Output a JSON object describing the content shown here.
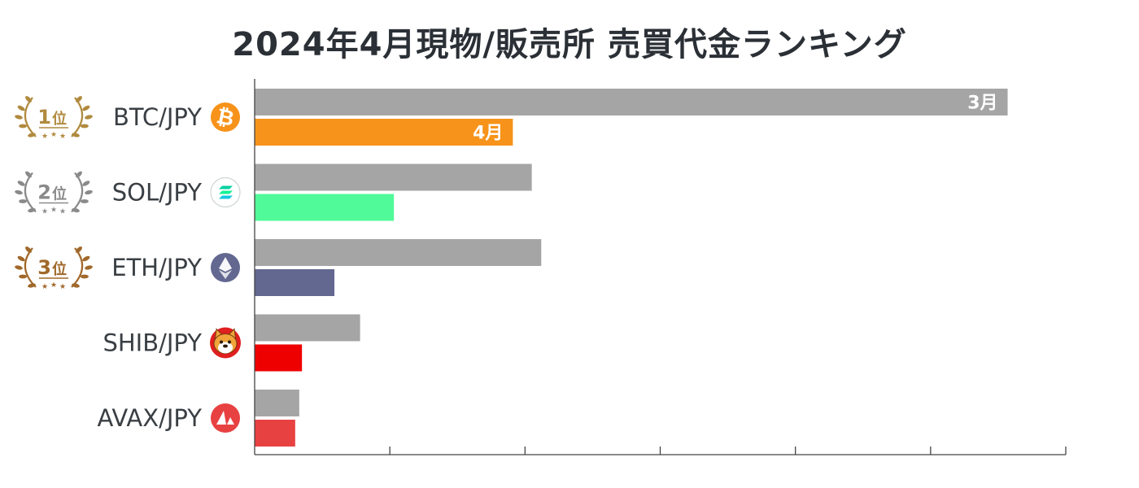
{
  "title": "2024年4月現物/販売所 売買代金ランキング",
  "chart_data": {
    "type": "bar",
    "orientation": "horizontal",
    "title": "2024年4月現物/販売所 売買代金ランキング",
    "categories": [
      "BTC/JPY",
      "SOL/JPY",
      "ETH/JPY",
      "SHIB/JPY",
      "AVAX/JPY"
    ],
    "series": [
      {
        "name": "3月",
        "color": "#a5a5a5",
        "values": [
          5.57,
          2.05,
          2.12,
          0.78,
          0.33
        ]
      },
      {
        "name": "4月",
        "values": [
          1.91,
          1.03,
          0.59,
          0.35,
          0.3
        ],
        "colors": [
          "#f7931a",
          "#50fa98",
          "#626890",
          "#ee0000",
          "#e84142"
        ]
      }
    ],
    "bar_labels": [
      "3月",
      "4月"
    ],
    "xlim": [
      0,
      6
    ],
    "x_ticks": 6,
    "grid": false,
    "legend": "none",
    "ranks": [
      {
        "category": "BTC/JPY",
        "num": "1",
        "unit": "位",
        "color": "#b08a3e"
      },
      {
        "category": "SOL/JPY",
        "num": "2",
        "unit": "位",
        "color": "#8a8a8a"
      },
      {
        "category": "ETH/JPY",
        "num": "3",
        "unit": "位",
        "color": "#a0682a"
      }
    ],
    "icons": [
      {
        "category": "BTC/JPY",
        "icon": "bitcoin-icon",
        "color": "#f7931a"
      },
      {
        "category": "SOL/JPY",
        "icon": "solana-icon",
        "color": "#14f195"
      },
      {
        "category": "ETH/JPY",
        "icon": "ethereum-icon",
        "color": "#626890"
      },
      {
        "category": "SHIB/JPY",
        "icon": "shiba-inu-icon",
        "color": "#f0a43a"
      },
      {
        "category": "AVAX/JPY",
        "icon": "avalanche-icon",
        "color": "#e84142"
      }
    ]
  }
}
